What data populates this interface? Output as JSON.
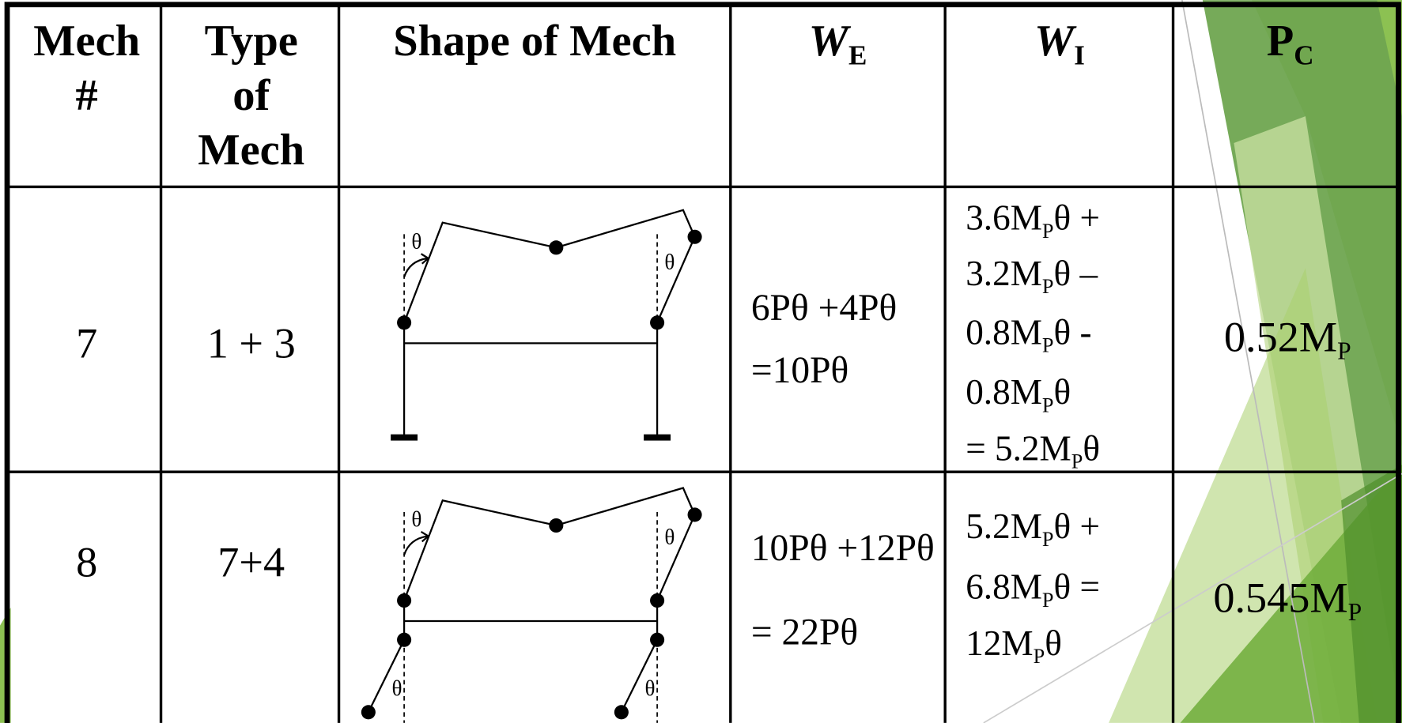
{
  "header": [
    {
      "lines": [
        "Mech",
        "#"
      ]
    },
    {
      "lines": [
        "Type",
        "of",
        "Mech"
      ]
    },
    {
      "lines": [
        "Shape of Mech"
      ]
    },
    {
      "main": "W",
      "sub": "E"
    },
    {
      "main": "W",
      "sub": "I"
    },
    {
      "main": "P",
      "sub": "C"
    }
  ],
  "rows": [
    {
      "mech": "7",
      "type": "1 + 3",
      "theta_labels": [
        "θ",
        "θ"
      ],
      "we": [
        [
          {
            "t": "6Pθ +4Pθ"
          }
        ],
        [
          {
            "t": "=10Pθ"
          }
        ]
      ],
      "wi": [
        [
          {
            "t": "3.6M"
          },
          {
            "sub": "P"
          },
          {
            "t": "θ +"
          }
        ],
        [
          {
            "t": "3.2M"
          },
          {
            "sub": "P"
          },
          {
            "t": "θ –"
          }
        ],
        [
          {
            "t": "0.8M"
          },
          {
            "sub": "P"
          },
          {
            "t": "θ -"
          }
        ],
        [
          {
            "t": "0.8M"
          },
          {
            "sub": "P"
          },
          {
            "t": "θ"
          }
        ],
        [
          {
            "t": "= 5.2M"
          },
          {
            "sub": "P"
          },
          {
            "t": "θ"
          }
        ]
      ],
      "pc": [
        {
          "t": "0.52M"
        },
        {
          "sub": "P"
        }
      ]
    },
    {
      "mech": "8",
      "type": "7+4",
      "theta_labels": [
        "θ",
        "θ",
        "θ",
        "θ"
      ],
      "we": [
        [
          {
            "t": "10Pθ +12Pθ"
          }
        ],
        [
          {
            "t": "= 22Pθ"
          }
        ]
      ],
      "wi": [
        [
          {
            "t": "5.2M"
          },
          {
            "sub": "P"
          },
          {
            "t": "θ +"
          }
        ],
        [
          {
            "t": "6.8M"
          },
          {
            "sub": "P"
          },
          {
            "t": "θ ="
          }
        ],
        [
          {
            "t": "12M"
          },
          {
            "sub": "P"
          },
          {
            "t": "θ"
          }
        ]
      ],
      "pc": [
        {
          "t": "0.545M"
        },
        {
          "sub": "P"
        }
      ]
    }
  ]
}
